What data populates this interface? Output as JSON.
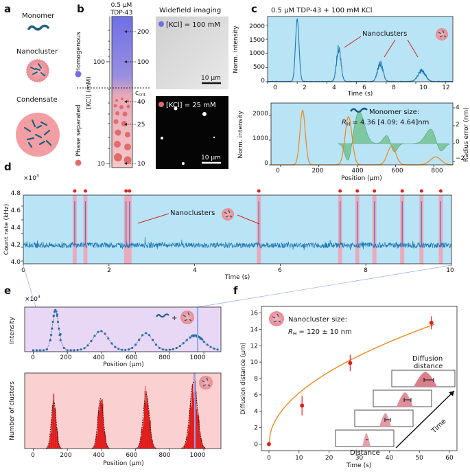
{
  "panels": {
    "a": "a",
    "b": "b",
    "c": "c",
    "d": "d",
    "e": "e",
    "f": "f"
  },
  "panel_a": {
    "monomer": "Monomer",
    "nanocluster": "Nanocluster",
    "condensate": "Condensate"
  },
  "panel_b": {
    "header_conc": "0.5 μM",
    "header_protein": "TDP-43",
    "ylabel": "[KCl] (mM)",
    "homogenous": "Homogenous",
    "phase_separated": "Phase separated",
    "kcl_ticks": [
      "100",
      "10"
    ],
    "arrow_labels": [
      "200",
      "100",
      "40",
      "25",
      "10"
    ],
    "ccrit": "c",
    "ccrit_sub": "crit",
    "widefield_title": "Widefield imaging",
    "img1_label": "[KCl] = 100 mM",
    "img2_label": "[KCl] = 25 mM",
    "scalebar": "10 μm",
    "colors": {
      "homog": "#6f70e6",
      "phase": "#e06c6c"
    }
  },
  "panel_c": {
    "title": "0.5 μM TDP-43 + 100 mM KCl",
    "top_ylabel": "Norm. intensity",
    "top_xlabel": "Time (s)",
    "top_xticks": [
      "0",
      "2",
      "4",
      "6",
      "8",
      "10",
      "12"
    ],
    "top_yticks": [
      "0",
      "500",
      "1000",
      "1500",
      "2000"
    ],
    "nanoclusters": "Nanoclusters",
    "bot_ylabel": "Norm. intensity",
    "bot_xlabel": "Position (μm)",
    "bot_y2label": "Radius error (nm)",
    "bot_xticks": [
      "0",
      "200",
      "400",
      "600",
      "800"
    ],
    "bot_yticks": [
      "0",
      "1000",
      "2000"
    ],
    "bot_y2ticks": [
      "4",
      "2",
      "0",
      "−2"
    ],
    "monomer_size": "Monomer size:",
    "rh_symbol": "R",
    "rh_sub": "H",
    "rh_value": " = 4.36 [4.09; 4.64]nm"
  },
  "panel_d": {
    "multiplier": "×10",
    "multiplier_exp": "3",
    "ylabel": "Count rate (kHz)",
    "xlabel": "Time (s)",
    "yticks": [
      "4.0",
      "4.2",
      "4.4",
      "4.6",
      "4.8"
    ],
    "xticks": [
      "0",
      "2",
      "4",
      "6",
      "8",
      "10"
    ],
    "nanoclusters": "Nanoclusters",
    "spike_times_s": [
      1.2,
      1.45,
      2.4,
      2.48,
      5.5,
      7.4,
      7.8,
      8.2,
      8.85,
      9.3,
      9.75
    ],
    "spike_heights_khz": [
      4.87,
      4.87,
      4.87,
      4.87,
      4.87,
      4.87,
      4.87,
      4.87,
      4.87,
      4.87,
      4.87
    ]
  },
  "panel_e": {
    "multiplier": "×10",
    "multiplier_exp": "3",
    "top_ylabel": "Intensity",
    "top_xlabel": "Position (μm)",
    "bot_ylabel": "Number of clusters",
    "bot_xlabel": "Position (μm)",
    "xticks": [
      "0",
      "200",
      "400",
      "600",
      "800",
      "1000"
    ],
    "plus": "+"
  },
  "chart_data": [
    {
      "type": "scatter",
      "panel": "f",
      "title": "Nanocluster size:",
      "annotation_symbol": "R",
      "annotation_sub": "H",
      "annotation_value": " = 120 ± 10 nm",
      "xlabel": "Time (s)",
      "ylabel": "Diffusion distance (μm)",
      "xlim": [
        0,
        60
      ],
      "ylim": [
        0,
        16
      ],
      "xticks": [
        "0",
        "10",
        "20",
        "30",
        "40",
        "50",
        "60"
      ],
      "yticks": [
        "0",
        "2",
        "4",
        "6",
        "8",
        "10",
        "12",
        "14",
        "16"
      ],
      "x": [
        0,
        11,
        27,
        54
      ],
      "y": [
        0,
        4.7,
        9.9,
        14.8
      ],
      "yerr": [
        0,
        1.2,
        1.0,
        0.8
      ],
      "fit": {
        "type": "sqrt",
        "coef": 1.97
      },
      "inset_labels": {
        "distance": "Distance",
        "diffusion_distance_1": "Diffusion",
        "diffusion_distance_2": "distance",
        "time": "Time"
      },
      "colors": {
        "points": "#e02020",
        "fit": "#f08a1a"
      }
    }
  ]
}
